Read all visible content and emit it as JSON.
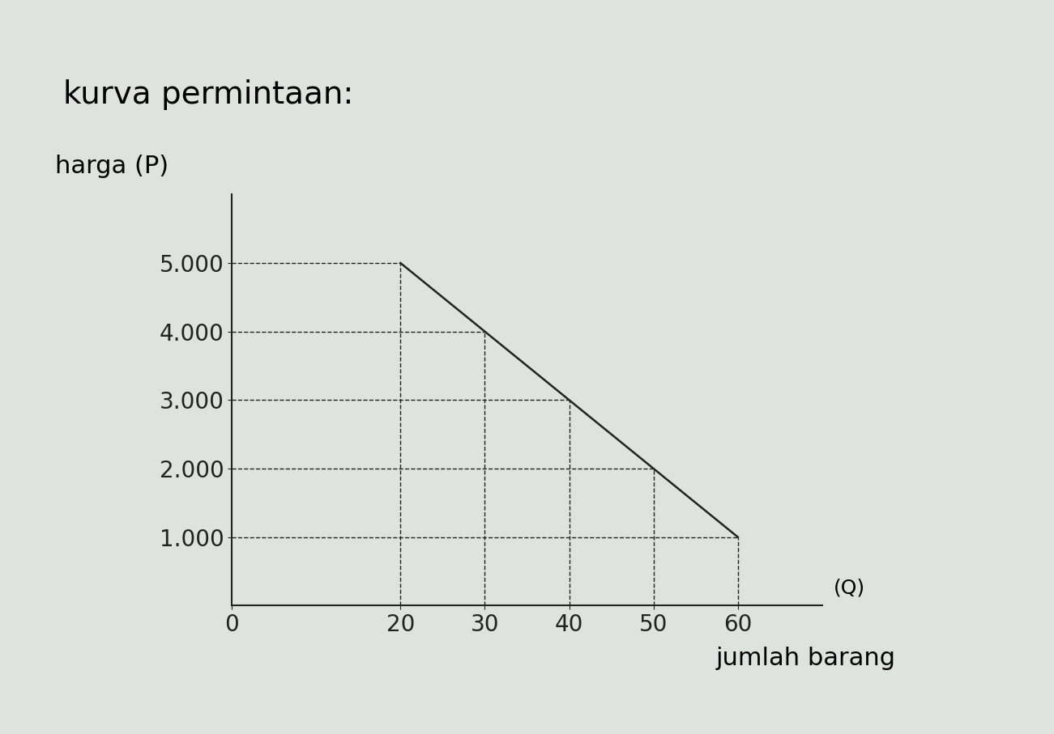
{
  "chart_data": {
    "type": "line",
    "title": "kurva permintaan:",
    "y_label": "harga (P)",
    "x_label": "jumlah barang",
    "x_symbol": "(Q)",
    "x": [
      20,
      30,
      40,
      50,
      60
    ],
    "values": [
      5000,
      4000,
      3000,
      2000,
      1000
    ],
    "color": "#222222",
    "line_style": "solid",
    "guide_style": "dashed",
    "xlim": [
      0,
      70
    ],
    "xticks": [
      0,
      20,
      30,
      40,
      50,
      60
    ],
    "ylim": [
      0,
      6000
    ],
    "yticks": [
      {
        "value": 1000,
        "label": "1.000"
      },
      {
        "value": 2000,
        "label": "2.000"
      },
      {
        "value": 3000,
        "label": "3.000"
      },
      {
        "value": 4000,
        "label": "4.000"
      },
      {
        "value": 5000,
        "label": "5.000"
      }
    ],
    "grid": false
  }
}
